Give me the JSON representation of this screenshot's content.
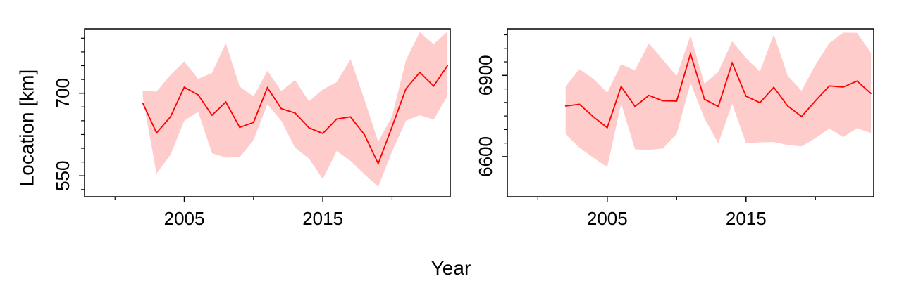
{
  "shared_labels": {
    "xlabel": "Year",
    "ylabel": "Location [km]"
  },
  "colors": {
    "line": "#ff0000",
    "band": "#ffcccc",
    "axis": "#000000"
  },
  "chart_data": [
    {
      "type": "area",
      "xlim": [
        1997.8,
        2024.2
      ],
      "ylim": [
        512,
        817
      ],
      "x_ticks": [
        2005,
        2015
      ],
      "x_minor_ticks": [
        2000,
        2010,
        2020
      ],
      "y_ticks": [
        550,
        700
      ],
      "y_minor_ticks": [
        600,
        650,
        750
      ],
      "y_extra_ticks": [
        800,
        775,
        725,
        675,
        625,
        575,
        525
      ],
      "x": [
        2002,
        2003,
        2004,
        2005,
        2006,
        2007,
        2008,
        2009,
        2010,
        2011,
        2012,
        2013,
        2014,
        2015,
        2016,
        2017,
        2018,
        2019,
        2020,
        2021,
        2022,
        2023,
        2024
      ],
      "series": [
        {
          "mean": [
            682,
            628,
            657,
            711,
            697,
            660,
            684,
            638,
            647,
            710,
            672,
            664,
            637,
            627,
            653,
            657,
            625,
            572,
            639,
            708,
            738,
            713,
            750
          ],
          "lower": [
            692,
            554,
            588,
            650,
            666,
            591,
            583,
            584,
            615,
            680,
            650,
            601,
            581,
            544,
            595,
            577,
            553,
            530,
            594,
            650,
            660,
            652,
            695
          ],
          "upper": [
            704,
            703,
            733,
            758,
            726,
            737,
            791,
            712,
            694,
            741,
            704,
            724,
            685,
            707,
            720,
            762,
            689,
            612,
            658,
            760,
            811,
            789,
            812
          ]
        }
      ]
    },
    {
      "type": "area",
      "xlim": [
        1997.8,
        2024.2
      ],
      "ylim": [
        6452,
        7072
      ],
      "x_ticks": [
        2005,
        2015
      ],
      "x_minor_ticks": [
        2000,
        2010,
        2020
      ],
      "y_ticks": [
        6600,
        6900
      ],
      "y_minor_ticks": [
        6650,
        6700,
        6750,
        6800,
        6850,
        6950,
        7000,
        7050
      ],
      "y_extra_ticks": [],
      "x": [
        2002,
        2003,
        2004,
        2005,
        2006,
        2007,
        2008,
        2009,
        2010,
        2011,
        2012,
        2013,
        2014,
        2015,
        2016,
        2017,
        2018,
        2019,
        2020,
        2021,
        2022,
        2023,
        2024
      ],
      "series": [
        {
          "mean": [
            6787,
            6793,
            6747,
            6707,
            6859,
            6785,
            6826,
            6806,
            6805,
            6980,
            6812,
            6785,
            6946,
            6823,
            6799,
            6856,
            6787,
            6748,
            6806,
            6861,
            6857,
            6879,
            6833
          ],
          "lower": [
            6683,
            6633,
            6596,
            6561,
            6796,
            6627,
            6625,
            6630,
            6684,
            6872,
            6742,
            6649,
            6795,
            6649,
            6653,
            6654,
            6643,
            6638,
            6668,
            6704,
            6672,
            6705,
            6687
          ],
          "upper": [
            6860,
            6923,
            6887,
            6836,
            6941,
            6919,
            7018,
            6958,
            6898,
            7047,
            6869,
            6913,
            7026,
            6964,
            6914,
            7052,
            6899,
            6843,
            6939,
            7019,
            7058,
            7057,
            6983
          ]
        }
      ]
    }
  ]
}
